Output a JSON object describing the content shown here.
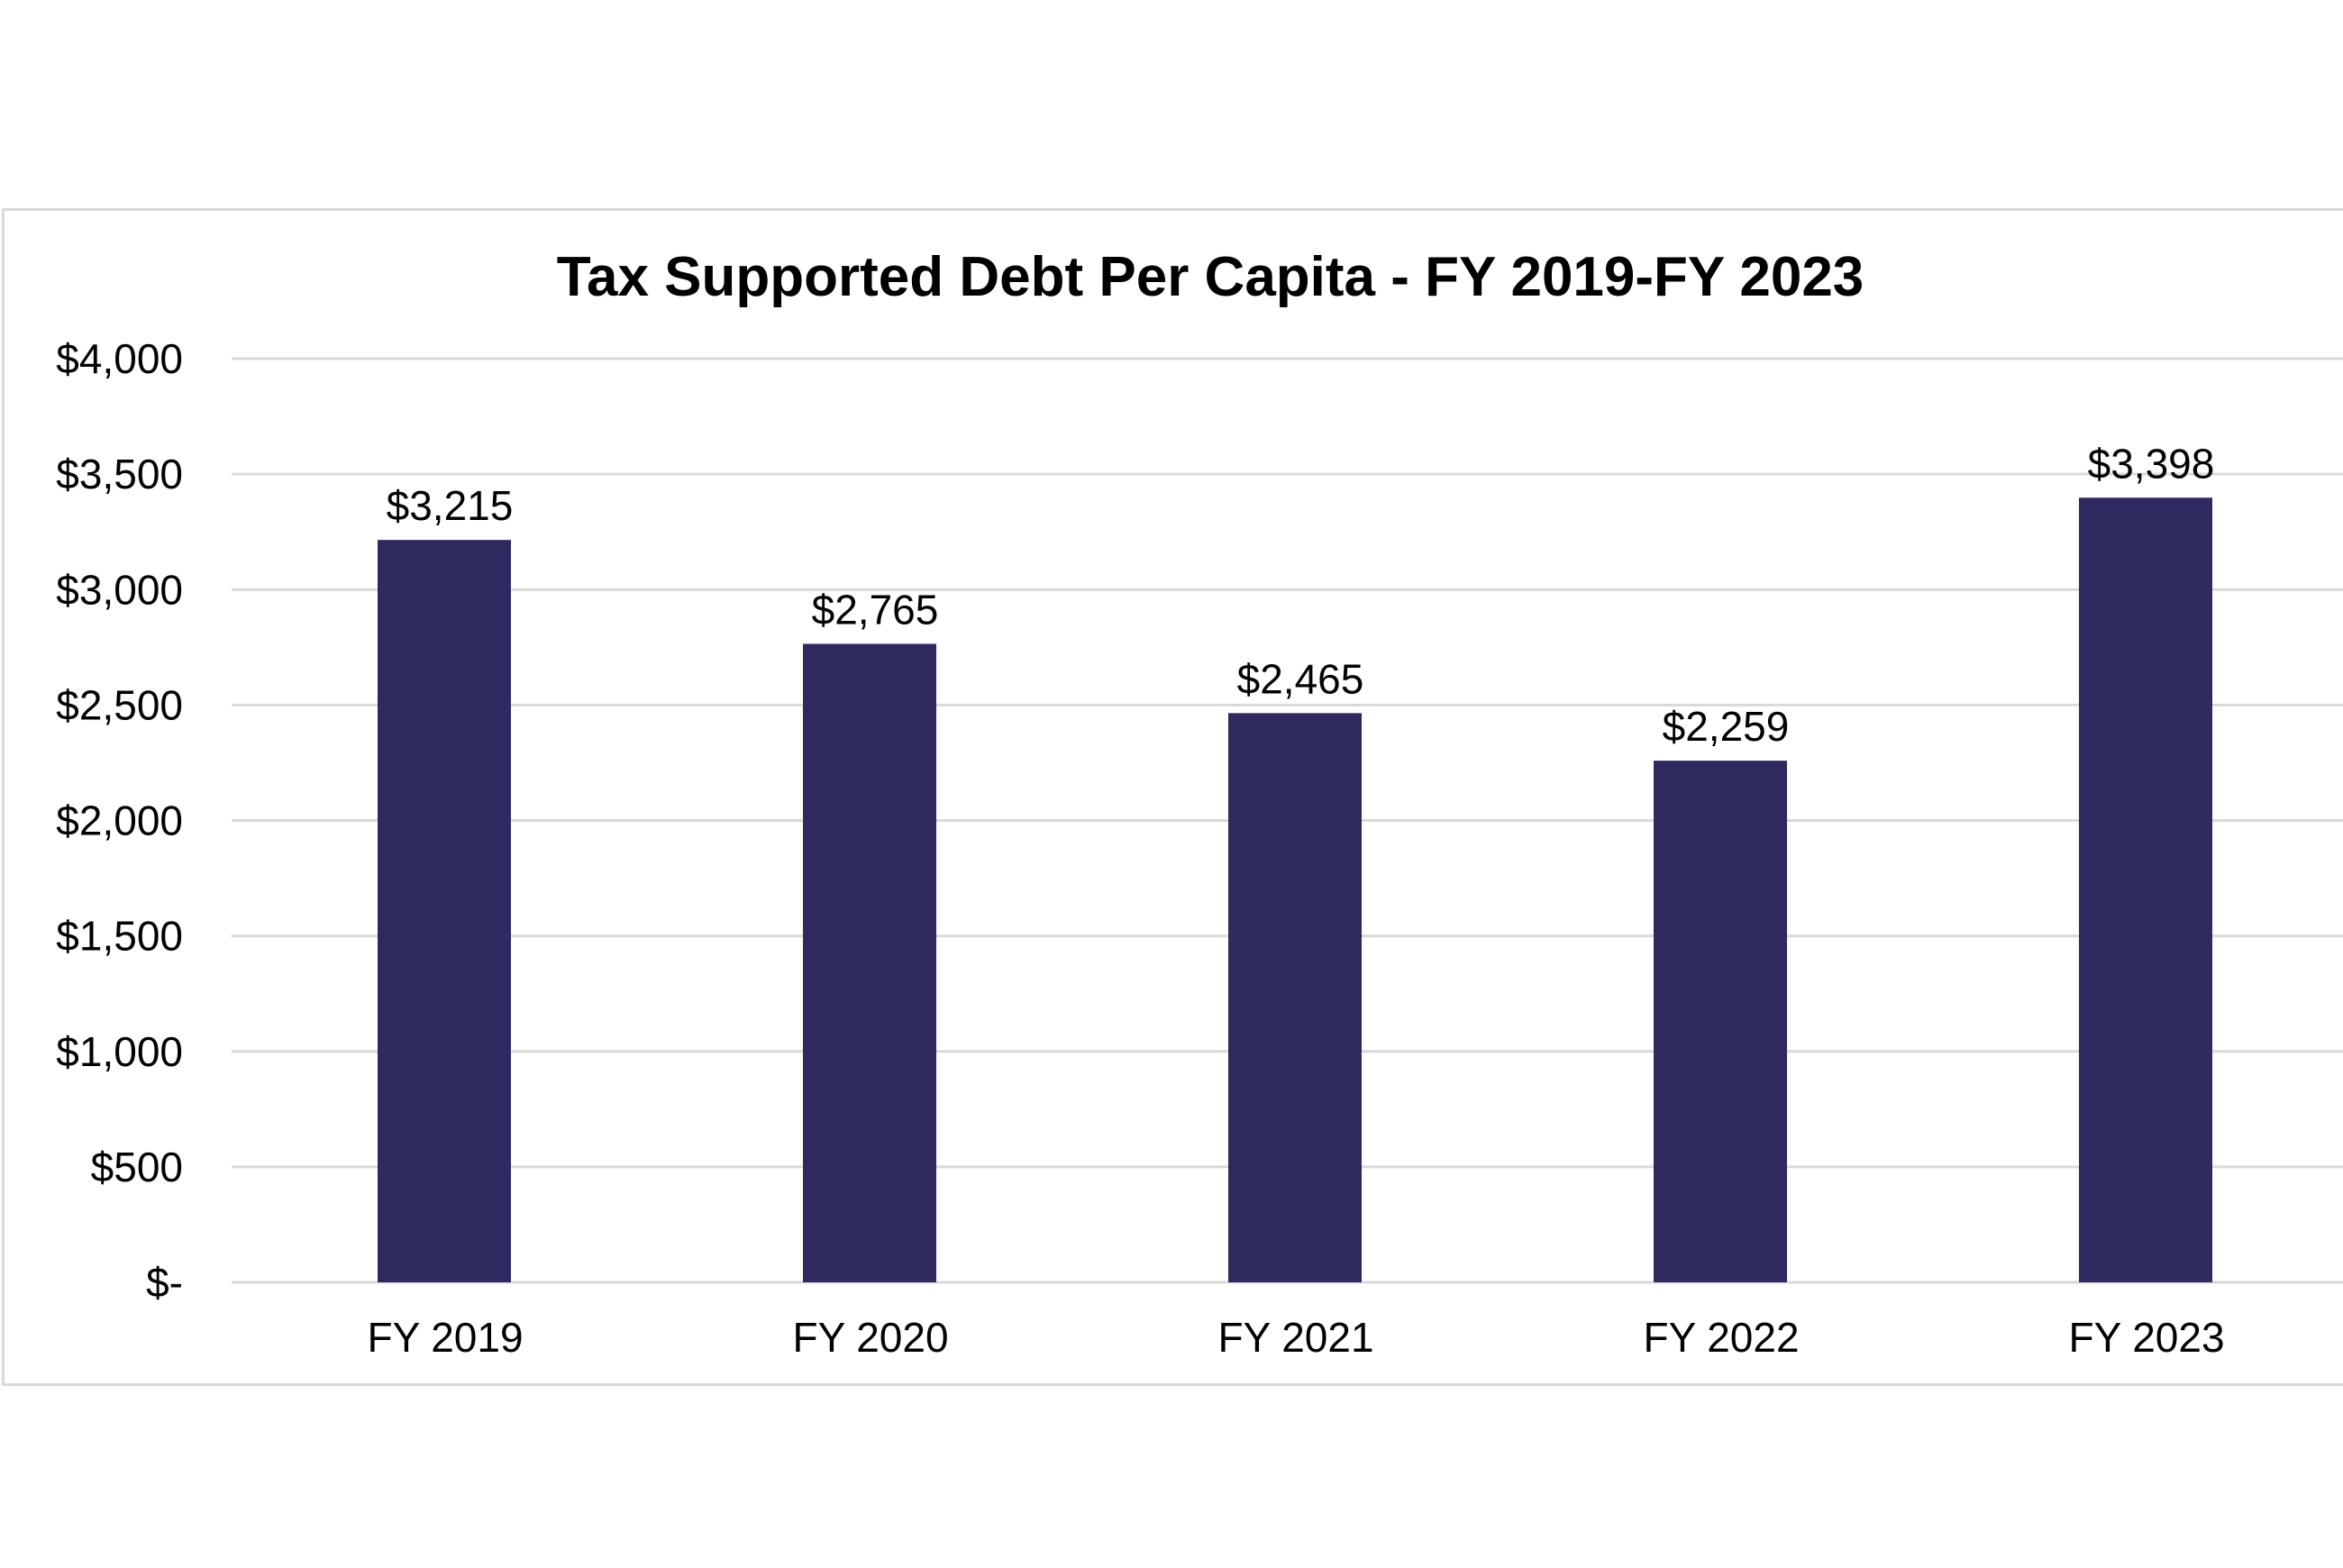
{
  "chart_data": {
    "type": "bar",
    "title": "Tax Supported Debt Per Capita - FY 2019-FY 2023",
    "categories": [
      "FY 2019",
      "FY 2020",
      "FY 2021",
      "FY 2022",
      "FY 2023"
    ],
    "values": [
      3215,
      2765,
      2465,
      2259,
      3398
    ],
    "data_labels": [
      "$3,215",
      "$2,765",
      "$2,465",
      "$2,259",
      "$3,398"
    ],
    "xlabel": "",
    "ylabel": "",
    "ylim": [
      0,
      4000
    ],
    "yticks": [
      0,
      500,
      1000,
      1500,
      2000,
      2500,
      3000,
      3500,
      4000
    ],
    "ytick_labels": [
      "$-",
      "$500",
      "$1,000",
      "$1,500",
      "$2,000",
      "$2,500",
      "$3,000",
      "$3,500",
      "$4,000"
    ],
    "grid": true,
    "legend": "none",
    "colors": {
      "bar": "#2e2a60",
      "grid": "#d9d9d9",
      "frame": "#d9d9d9"
    }
  }
}
